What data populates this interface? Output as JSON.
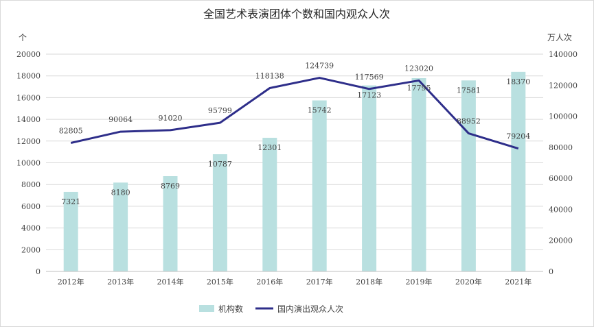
{
  "chart_data": {
    "type": "bar",
    "title": "全国艺术表演团体个数和国内观众人次",
    "categories": [
      "2012年",
      "2013年",
      "2014年",
      "2015年",
      "2016年",
      "2017年",
      "2018年",
      "2019年",
      "2020年",
      "2021年"
    ],
    "series": [
      {
        "name": "机构数",
        "type": "bar",
        "axis": "left",
        "color": "#b9e0e0",
        "values": [
          7321,
          8180,
          8769,
          10787,
          12301,
          15742,
          17123,
          17795,
          17581,
          18370
        ]
      },
      {
        "name": "国内演出观众人次",
        "type": "line",
        "axis": "right",
        "color": "#2e2e8a",
        "values": [
          82805,
          90064,
          91020,
          95799,
          118138,
          124739,
          117569,
          123020,
          88952,
          79204
        ]
      }
    ],
    "left_axis": {
      "unit": "个",
      "ylim": [
        0,
        20000
      ],
      "ticks": [
        0,
        2000,
        4000,
        6000,
        8000,
        10000,
        12000,
        14000,
        16000,
        18000,
        20000
      ]
    },
    "right_axis": {
      "unit": "万人次",
      "ylim": [
        0,
        140000
      ],
      "ticks": [
        0,
        20000,
        40000,
        60000,
        80000,
        100000,
        120000,
        140000
      ]
    },
    "grid": true,
    "legend": "bottom"
  }
}
